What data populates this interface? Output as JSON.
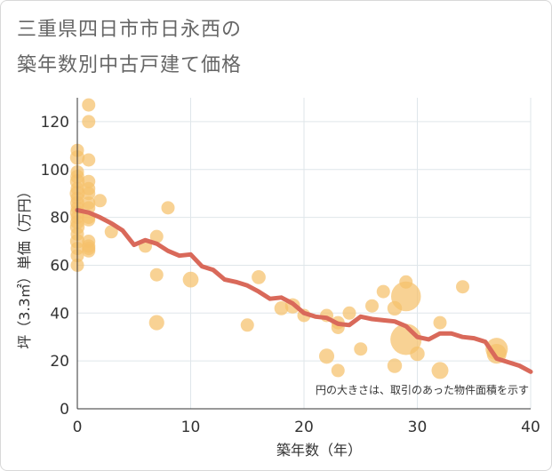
{
  "chart_data": {
    "type": "scatter",
    "title_line1": "三重県四日市市日永西の",
    "title_line2": "築年数別中古戸建て価格",
    "xlabel": "築年数（年）",
    "ylabel": "坪（3.3㎡）単価（万円）",
    "note": "円の大きさは、取引のあった物件面積を示す",
    "xlim": [
      0,
      40
    ],
    "ylim": [
      0,
      130
    ],
    "x_ticks": [
      0,
      10,
      20,
      30,
      40
    ],
    "y_ticks": [
      0,
      20,
      40,
      60,
      80,
      100,
      120
    ],
    "bubble_color": "#f5c16b",
    "line_color": "#d9695a",
    "points": [
      {
        "x": 0,
        "y": 108,
        "s": 1
      },
      {
        "x": 0,
        "y": 105,
        "s": 1.2
      },
      {
        "x": 0,
        "y": 99,
        "s": 1
      },
      {
        "x": 0,
        "y": 97,
        "s": 1.1
      },
      {
        "x": 0,
        "y": 95,
        "s": 1.2
      },
      {
        "x": 0,
        "y": 92,
        "s": 1
      },
      {
        "x": 0,
        "y": 90,
        "s": 1.3
      },
      {
        "x": 0,
        "y": 88,
        "s": 1
      },
      {
        "x": 0,
        "y": 86,
        "s": 1.1
      },
      {
        "x": 0,
        "y": 84,
        "s": 1
      },
      {
        "x": 0,
        "y": 82,
        "s": 1.2
      },
      {
        "x": 0,
        "y": 80,
        "s": 1
      },
      {
        "x": 0,
        "y": 78,
        "s": 1.1
      },
      {
        "x": 0,
        "y": 76,
        "s": 1.2
      },
      {
        "x": 0,
        "y": 73,
        "s": 1
      },
      {
        "x": 0,
        "y": 70,
        "s": 1.2
      },
      {
        "x": 0,
        "y": 67,
        "s": 1
      },
      {
        "x": 0,
        "y": 64,
        "s": 1
      },
      {
        "x": 0,
        "y": 60,
        "s": 1
      },
      {
        "x": 1,
        "y": 127,
        "s": 1
      },
      {
        "x": 1,
        "y": 120,
        "s": 1
      },
      {
        "x": 1,
        "y": 104,
        "s": 1
      },
      {
        "x": 1,
        "y": 95,
        "s": 1
      },
      {
        "x": 1,
        "y": 92,
        "s": 1
      },
      {
        "x": 1,
        "y": 90,
        "s": 1
      },
      {
        "x": 1,
        "y": 86,
        "s": 1
      },
      {
        "x": 1,
        "y": 84,
        "s": 1
      },
      {
        "x": 1,
        "y": 80,
        "s": 1
      },
      {
        "x": 1,
        "y": 79,
        "s": 1
      },
      {
        "x": 1,
        "y": 70,
        "s": 1
      },
      {
        "x": 1,
        "y": 68,
        "s": 1
      },
      {
        "x": 1,
        "y": 67,
        "s": 1
      },
      {
        "x": 1,
        "y": 66,
        "s": 1
      },
      {
        "x": 2,
        "y": 87,
        "s": 1
      },
      {
        "x": 3,
        "y": 74,
        "s": 1
      },
      {
        "x": 6,
        "y": 68,
        "s": 1
      },
      {
        "x": 7,
        "y": 72,
        "s": 1
      },
      {
        "x": 7,
        "y": 56,
        "s": 1
      },
      {
        "x": 7,
        "y": 36,
        "s": 1.3
      },
      {
        "x": 8,
        "y": 84,
        "s": 1
      },
      {
        "x": 10,
        "y": 54,
        "s": 1.4
      },
      {
        "x": 15,
        "y": 35,
        "s": 1
      },
      {
        "x": 16,
        "y": 55,
        "s": 1.1
      },
      {
        "x": 18,
        "y": 42,
        "s": 1.1
      },
      {
        "x": 19,
        "y": 43,
        "s": 1.3
      },
      {
        "x": 20,
        "y": 39,
        "s": 1
      },
      {
        "x": 22,
        "y": 39,
        "s": 1
      },
      {
        "x": 22,
        "y": 22,
        "s": 1.3
      },
      {
        "x": 23,
        "y": 36,
        "s": 1
      },
      {
        "x": 23,
        "y": 34,
        "s": 1
      },
      {
        "x": 23,
        "y": 16,
        "s": 1
      },
      {
        "x": 24,
        "y": 40,
        "s": 1
      },
      {
        "x": 25,
        "y": 25,
        "s": 1
      },
      {
        "x": 26,
        "y": 43,
        "s": 1
      },
      {
        "x": 27,
        "y": 49,
        "s": 1
      },
      {
        "x": 28,
        "y": 42,
        "s": 1.2
      },
      {
        "x": 28,
        "y": 18,
        "s": 1.2
      },
      {
        "x": 29,
        "y": 53,
        "s": 1
      },
      {
        "x": 29,
        "y": 47,
        "s": 5
      },
      {
        "x": 29,
        "y": 29,
        "s": 5.5
      },
      {
        "x": 30,
        "y": 23,
        "s": 1.2
      },
      {
        "x": 32,
        "y": 36,
        "s": 1
      },
      {
        "x": 32,
        "y": 16,
        "s": 1.6
      },
      {
        "x": 34,
        "y": 51,
        "s": 1
      },
      {
        "x": 37,
        "y": 25,
        "s": 2.8
      },
      {
        "x": 37,
        "y": 23,
        "s": 2.2
      }
    ],
    "trend": [
      {
        "x": 0,
        "y": 83
      },
      {
        "x": 1,
        "y": 82
      },
      {
        "x": 2,
        "y": 80
      },
      {
        "x": 3,
        "y": 77.5
      },
      {
        "x": 4,
        "y": 74.5
      },
      {
        "x": 5,
        "y": 68.5
      },
      {
        "x": 6,
        "y": 70.5
      },
      {
        "x": 7,
        "y": 69
      },
      {
        "x": 8,
        "y": 66
      },
      {
        "x": 9,
        "y": 64
      },
      {
        "x": 10,
        "y": 64.5
      },
      {
        "x": 11,
        "y": 59.5
      },
      {
        "x": 12,
        "y": 58
      },
      {
        "x": 13,
        "y": 54
      },
      {
        "x": 14,
        "y": 53
      },
      {
        "x": 15,
        "y": 51.5
      },
      {
        "x": 16,
        "y": 49
      },
      {
        "x": 17,
        "y": 46
      },
      {
        "x": 18,
        "y": 46.5
      },
      {
        "x": 19,
        "y": 44
      },
      {
        "x": 20,
        "y": 40
      },
      {
        "x": 21,
        "y": 38.5
      },
      {
        "x": 22,
        "y": 38
      },
      {
        "x": 23,
        "y": 35.5
      },
      {
        "x": 24,
        "y": 35
      },
      {
        "x": 25,
        "y": 38.5
      },
      {
        "x": 26,
        "y": 37.5
      },
      {
        "x": 27,
        "y": 37
      },
      {
        "x": 28,
        "y": 36.5
      },
      {
        "x": 29,
        "y": 34.5
      },
      {
        "x": 30,
        "y": 30
      },
      {
        "x": 31,
        "y": 29
      },
      {
        "x": 32,
        "y": 31.5
      },
      {
        "x": 33,
        "y": 31.5
      },
      {
        "x": 34,
        "y": 30
      },
      {
        "x": 35,
        "y": 29.5
      },
      {
        "x": 36,
        "y": 28
      },
      {
        "x": 37,
        "y": 21
      },
      {
        "x": 38,
        "y": 19.5
      },
      {
        "x": 39,
        "y": 18
      },
      {
        "x": 40,
        "y": 15.5
      }
    ]
  }
}
